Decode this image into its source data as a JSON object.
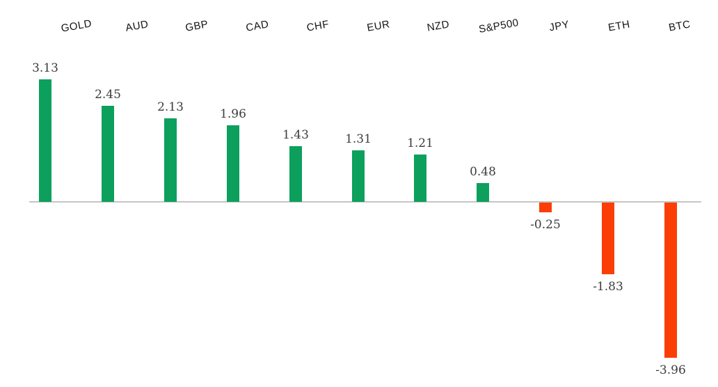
{
  "chart_data": {
    "type": "bar",
    "title": "",
    "xlabel": "",
    "ylabel": "",
    "categories": [
      "GOLD",
      "AUD",
      "GBP",
      "CAD",
      "CHF",
      "EUR",
      "NZD",
      "S&P500",
      "JPY",
      "ETH",
      "BTC"
    ],
    "values": [
      3.13,
      2.45,
      2.13,
      1.96,
      1.43,
      1.31,
      1.21,
      0.48,
      -0.25,
      -1.83,
      -3.96
    ],
    "value_labels": [
      "3.13",
      "2.45",
      "2.13",
      "1.96",
      "1.43",
      "1.31",
      "1.21",
      "0.48",
      "-0.25",
      "-1.83",
      "-3.96"
    ],
    "ylim": [
      -4.5,
      3.5
    ],
    "grid": false,
    "legend_position": "none",
    "category_label_position": "top",
    "category_label_rotation_deg": -10,
    "data_labels_visible": true,
    "colors": {
      "positive_bar": "#0CA05C",
      "negative_bar": "#FB3E05",
      "axis_line": "#C6C6C6",
      "value_label_text": "#3C3C3C",
      "category_label_text": "#141414",
      "background": "#FFFFFF"
    }
  }
}
